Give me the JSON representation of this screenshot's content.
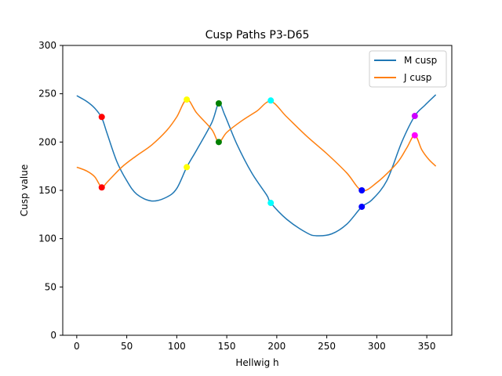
{
  "chart_data": {
    "type": "line",
    "title": "Cusp Paths P3-D65",
    "xlabel": "Hellwig h",
    "ylabel": "Cusp value",
    "xlim": [
      -14,
      375
    ],
    "ylim": [
      0,
      300
    ],
    "xticks": [
      0,
      50,
      100,
      150,
      200,
      250,
      300,
      350
    ],
    "yticks": [
      0,
      50,
      100,
      150,
      200,
      250,
      300
    ],
    "grid": false,
    "legend_position": "top-right",
    "series": [
      {
        "name": "M cusp",
        "color": "#1f77b4",
        "points": [
          [
            0,
            248
          ],
          [
            10,
            242
          ],
          [
            18,
            235
          ],
          [
            25,
            225
          ],
          [
            30,
            210
          ],
          [
            40,
            180
          ],
          [
            50,
            160
          ],
          [
            60,
            146
          ],
          [
            75,
            139
          ],
          [
            90,
            143
          ],
          [
            100,
            152
          ],
          [
            110,
            174
          ],
          [
            120,
            192
          ],
          [
            135,
            220
          ],
          [
            142,
            240
          ],
          [
            148,
            228
          ],
          [
            160,
            198
          ],
          [
            175,
            168
          ],
          [
            190,
            145
          ],
          [
            194,
            137
          ],
          [
            210,
            120
          ],
          [
            230,
            106
          ],
          [
            240,
            103
          ],
          [
            255,
            105
          ],
          [
            270,
            115
          ],
          [
            285,
            133
          ],
          [
            295,
            140
          ],
          [
            310,
            160
          ],
          [
            325,
            200
          ],
          [
            338,
            227
          ],
          [
            348,
            238
          ],
          [
            359,
            249
          ]
        ]
      },
      {
        "name": "J cusp",
        "color": "#ff7f0e",
        "points": [
          [
            0,
            174
          ],
          [
            10,
            170
          ],
          [
            18,
            164
          ],
          [
            25,
            153
          ],
          [
            30,
            158
          ],
          [
            45,
            174
          ],
          [
            60,
            186
          ],
          [
            75,
            197
          ],
          [
            90,
            212
          ],
          [
            100,
            226
          ],
          [
            110,
            244
          ],
          [
            120,
            230
          ],
          [
            135,
            213
          ],
          [
            142,
            200
          ],
          [
            150,
            210
          ],
          [
            165,
            222
          ],
          [
            180,
            232
          ],
          [
            194,
            242
          ],
          [
            210,
            226
          ],
          [
            230,
            206
          ],
          [
            250,
            188
          ],
          [
            270,
            168
          ],
          [
            285,
            150
          ],
          [
            300,
            158
          ],
          [
            320,
            178
          ],
          [
            330,
            194
          ],
          [
            338,
            207
          ],
          [
            345,
            192
          ],
          [
            352,
            182
          ],
          [
            359,
            175
          ]
        ]
      }
    ],
    "markers": [
      {
        "x": 25,
        "y": 226,
        "color": "#ff0000"
      },
      {
        "x": 25,
        "y": 153,
        "color": "#ff0000"
      },
      {
        "x": 110,
        "y": 244,
        "color": "#ffff00"
      },
      {
        "x": 110,
        "y": 174,
        "color": "#ffff00"
      },
      {
        "x": 142,
        "y": 240,
        "color": "#008000"
      },
      {
        "x": 142,
        "y": 200,
        "color": "#008000"
      },
      {
        "x": 194,
        "y": 243,
        "color": "#00ffff"
      },
      {
        "x": 194,
        "y": 137,
        "color": "#00ffff"
      },
      {
        "x": 285,
        "y": 150,
        "color": "#0000ff"
      },
      {
        "x": 285,
        "y": 133,
        "color": "#0000ff"
      },
      {
        "x": 338,
        "y": 227,
        "color": "#cc00ff"
      },
      {
        "x": 338,
        "y": 207,
        "color": "#ff00ff"
      }
    ]
  }
}
